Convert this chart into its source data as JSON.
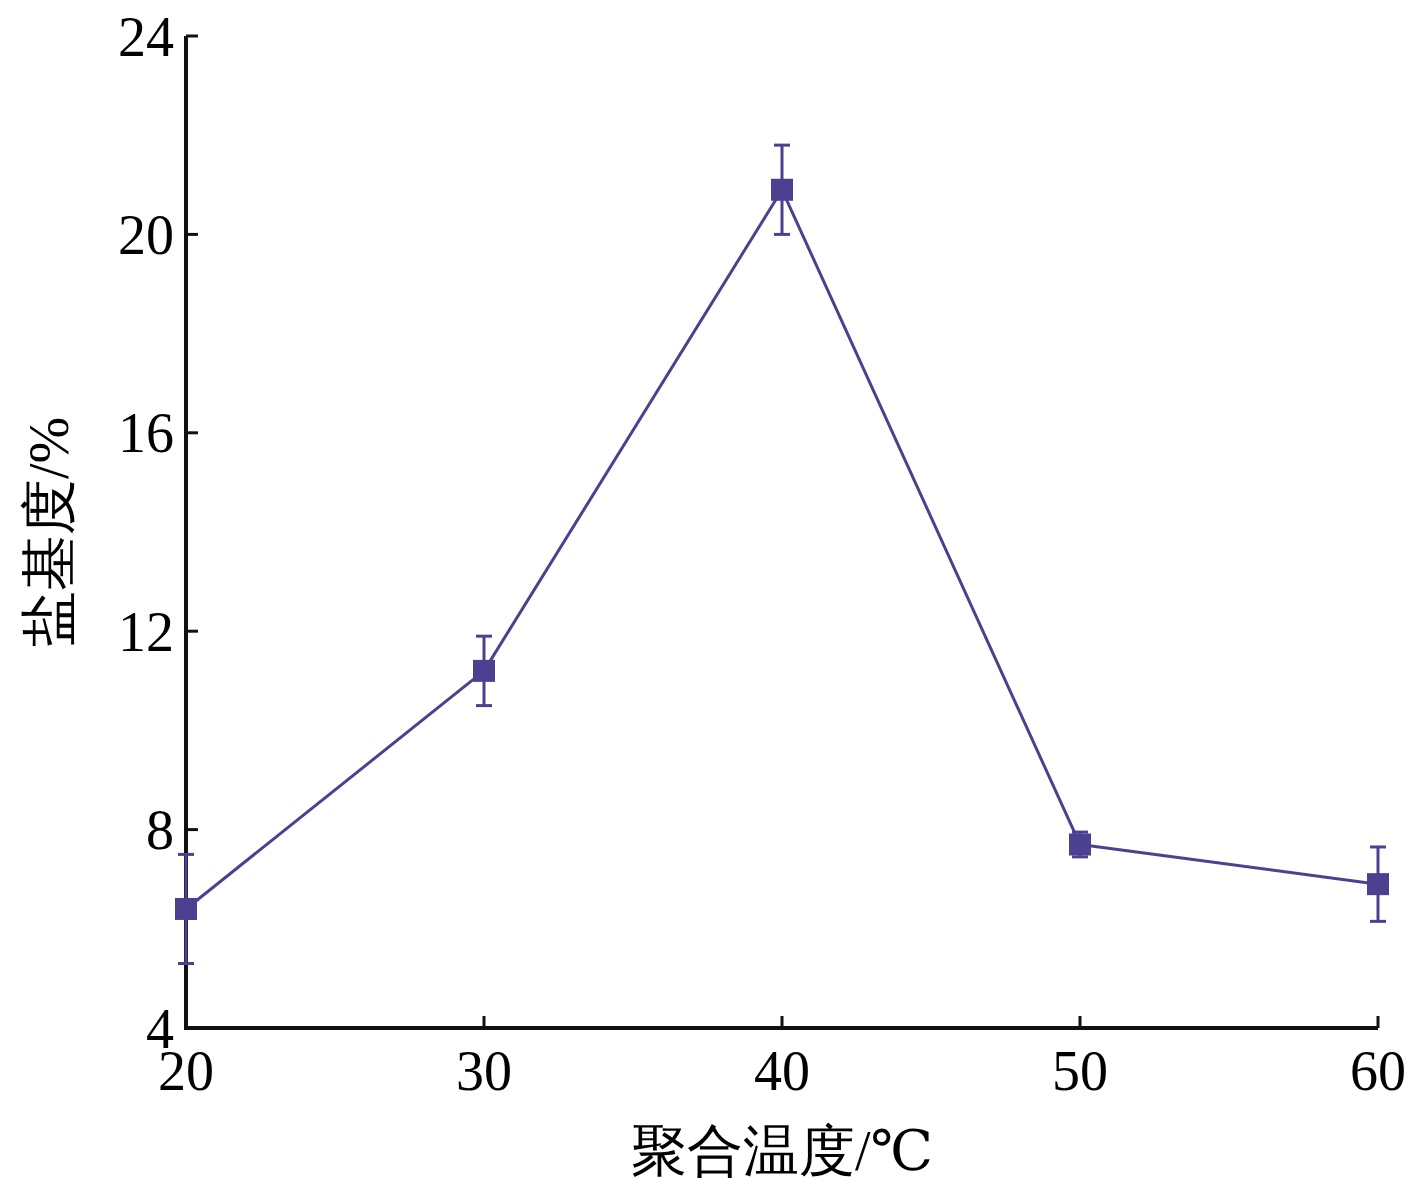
{
  "chart_data": {
    "type": "line",
    "xlabel": "聚合温度/℃",
    "ylabel": "盐基度/%",
    "x": [
      20,
      30,
      40,
      50,
      60
    ],
    "series": [
      {
        "color": "#4b4190",
        "values": [
          6.4,
          11.2,
          20.9,
          7.7,
          6.9
        ],
        "errors": [
          1.1,
          0.7,
          0.9,
          0.25,
          0.75
        ]
      }
    ],
    "xlim": [
      20,
      60
    ],
    "xticks": [
      20,
      30,
      40,
      50,
      60
    ],
    "ylim": [
      4,
      24
    ],
    "yticks": [
      4,
      8,
      12,
      16,
      20,
      24
    ],
    "marker": "square",
    "line_style": "solid"
  }
}
